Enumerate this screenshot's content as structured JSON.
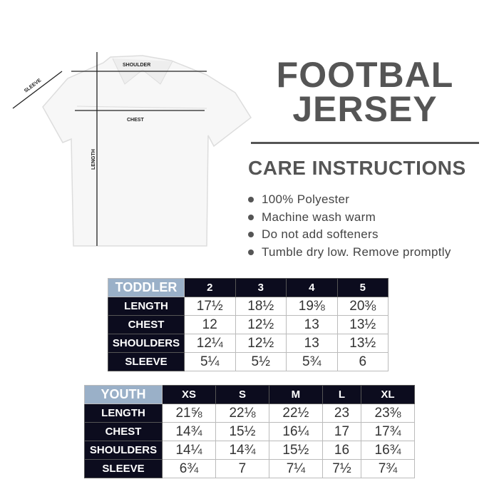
{
  "diagram": {
    "shoulder": "SHOULDER",
    "chest": "CHEST",
    "sleeve": "SLEEVE",
    "length": "LENGTH"
  },
  "title_line1": "FOOTBAL",
  "title_line2": "JERSEY",
  "care_heading": "CARE INSTRUCTIONS",
  "care_items": [
    "100% Polyester",
    "Machine wash warm",
    "Do not add softeners",
    "Tumble dry low. Remove promptly"
  ],
  "toddler": {
    "caption": "TODDLER",
    "sizes": [
      "2",
      "3",
      "4",
      "5"
    ],
    "rows": [
      {
        "label": "LENGTH",
        "values": [
          "17½",
          "18½",
          "19⅜",
          "20⅜"
        ]
      },
      {
        "label": "CHEST",
        "values": [
          "12",
          "12½",
          "13",
          "13½"
        ]
      },
      {
        "label": "SHOULDERS",
        "values": [
          "12¼",
          "12½",
          "13",
          "13½"
        ]
      },
      {
        "label": "SLEEVE",
        "values": [
          "5¼",
          "5½",
          "5¾",
          "6"
        ]
      }
    ]
  },
  "youth": {
    "caption": "YOUTH",
    "sizes": [
      "XS",
      "S",
      "M",
      "L",
      "XL"
    ],
    "rows": [
      {
        "label": "LENGTH",
        "values": [
          "21⅝",
          "22⅛",
          "22½",
          "23",
          "23⅜"
        ]
      },
      {
        "label": "CHEST",
        "values": [
          "14¾",
          "15½",
          "16¼",
          "17",
          "17¾"
        ]
      },
      {
        "label": "SHOULDERS",
        "values": [
          "14¼",
          "14¾",
          "15½",
          "16",
          "16¾"
        ]
      },
      {
        "label": "SLEEVE",
        "values": [
          "6¾",
          "7",
          "7¼",
          "7½",
          "7¾"
        ]
      }
    ]
  },
  "colors": {
    "header_dark": "#0c0c1e",
    "caption_blue": "#9ab0c8",
    "title_gray": "#555555"
  }
}
